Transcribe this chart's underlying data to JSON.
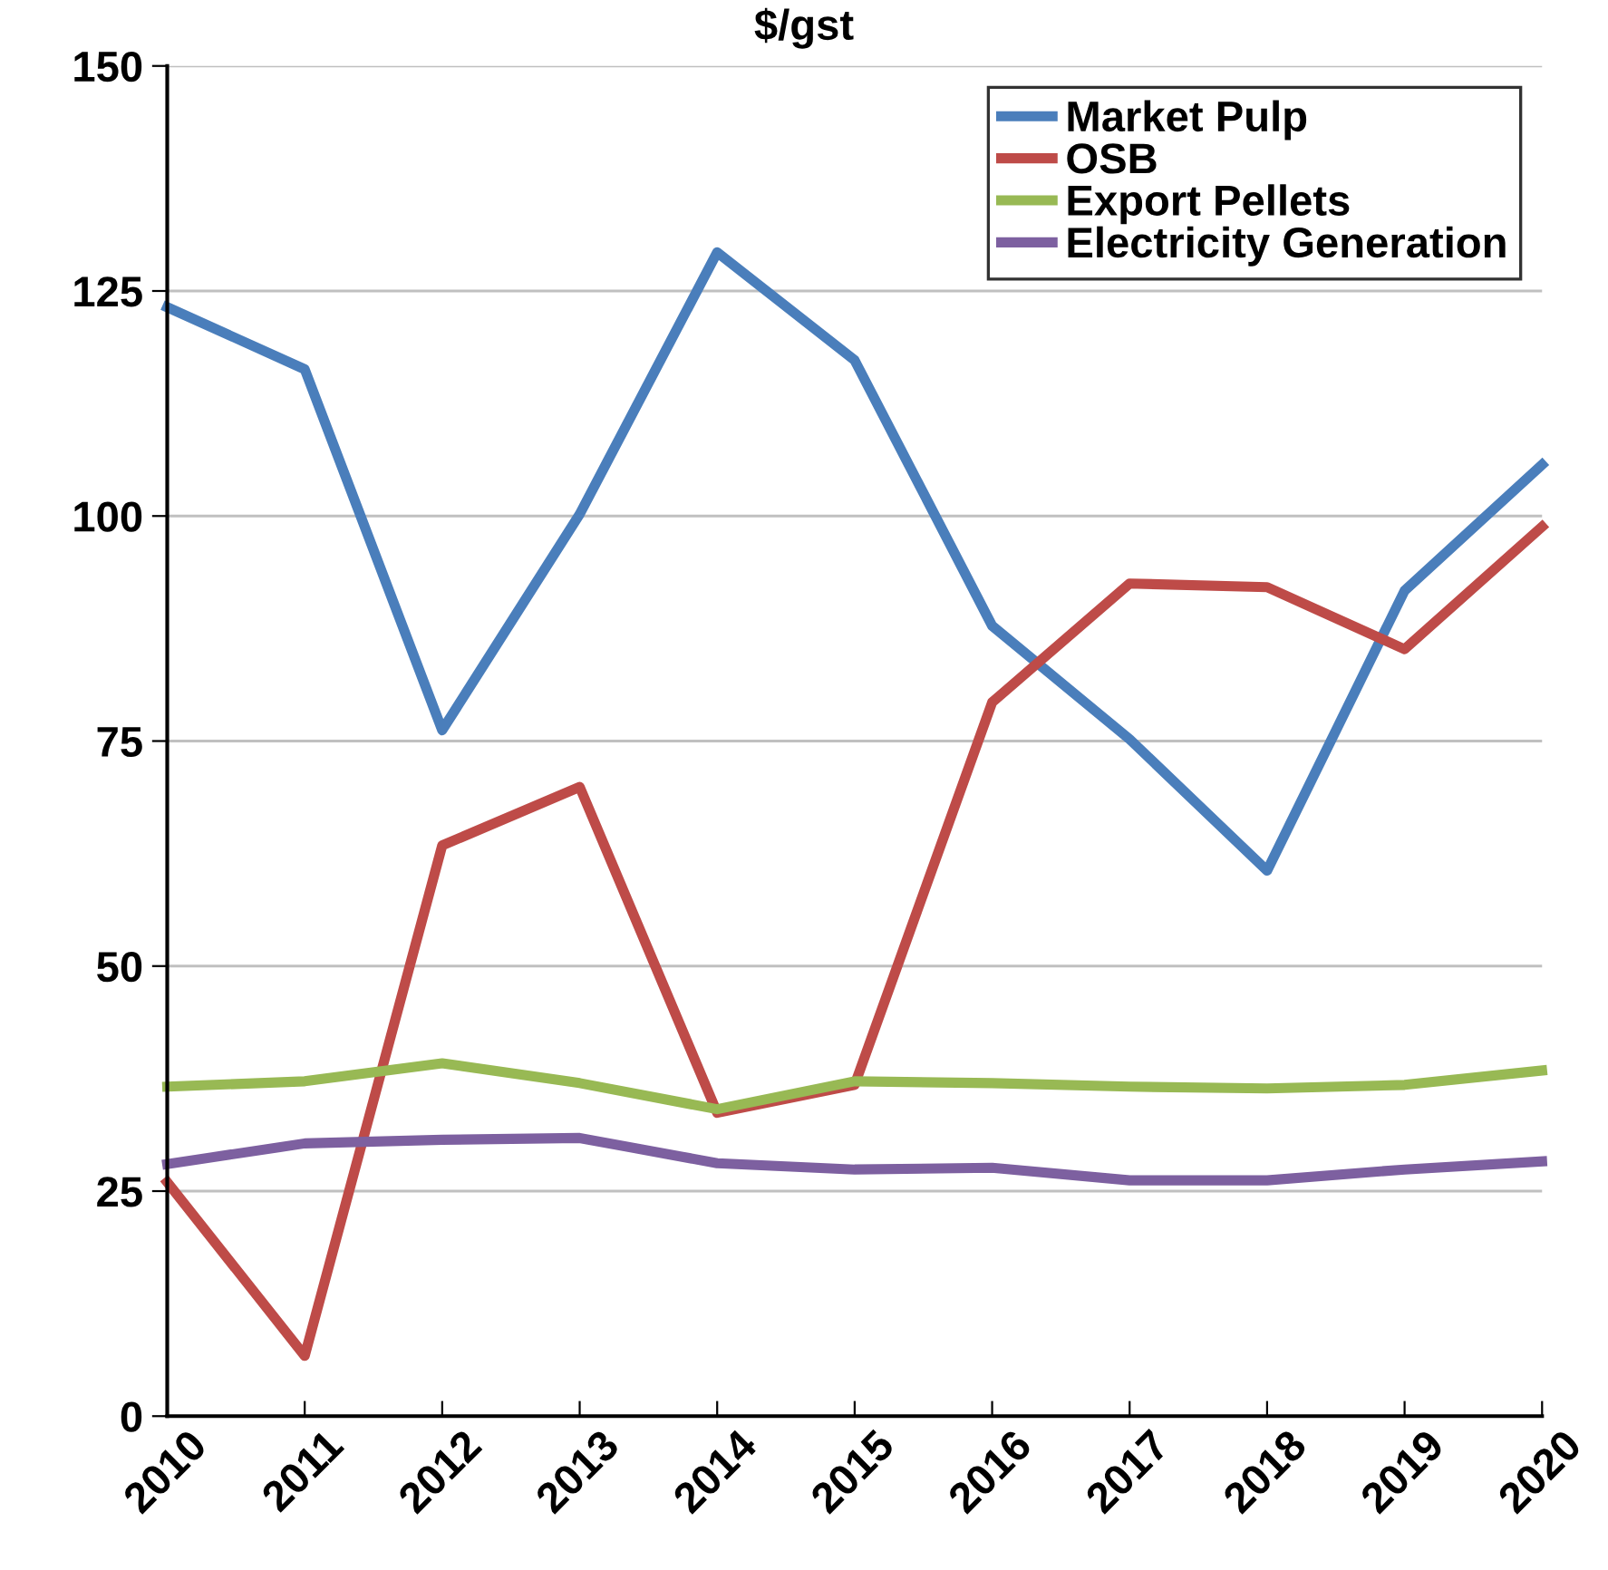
{
  "chart_data": {
    "type": "line",
    "title": "$/gst",
    "x": [
      2010,
      2011,
      2012,
      2013,
      2014,
      2015,
      2016,
      2017,
      2018,
      2019,
      2020
    ],
    "series": [
      {
        "name": "Market Pulp",
        "color": "#4a7ebb",
        "values": [
          123.2,
          116.3,
          76.2,
          100.2,
          129.3,
          117.3,
          87.8,
          75.2,
          60.6,
          91.7,
          105.7
        ]
      },
      {
        "name": "OSB",
        "color": "#be4b48",
        "values": [
          26,
          6.7,
          63.4,
          69.9,
          33.7,
          36.8,
          79.3,
          92.5,
          92.1,
          85.2,
          98.8
        ]
      },
      {
        "name": "Export Pellets",
        "color": "#98b954",
        "values": [
          36.6,
          37.2,
          39.2,
          37,
          34.1,
          37.2,
          37,
          36.6,
          36.4,
          36.8,
          38.4
        ]
      },
      {
        "name": "Electricity Generation",
        "color": "#7d60a0",
        "values": [
          28,
          30.3,
          30.7,
          30.9,
          28.1,
          27.4,
          27.6,
          26.2,
          26.2,
          27.4,
          28.3
        ]
      }
    ],
    "xlim": [
      2010,
      2020
    ],
    "xticks": [
      2010,
      2011,
      2012,
      2013,
      2014,
      2015,
      2016,
      2017,
      2018,
      2019,
      2020
    ],
    "ylim": [
      0,
      150
    ],
    "yticks": [
      0,
      25,
      50,
      75,
      100,
      125,
      150
    ],
    "grid": "y",
    "legend": "top right",
    "marker": "none",
    "line_style": "solid"
  }
}
